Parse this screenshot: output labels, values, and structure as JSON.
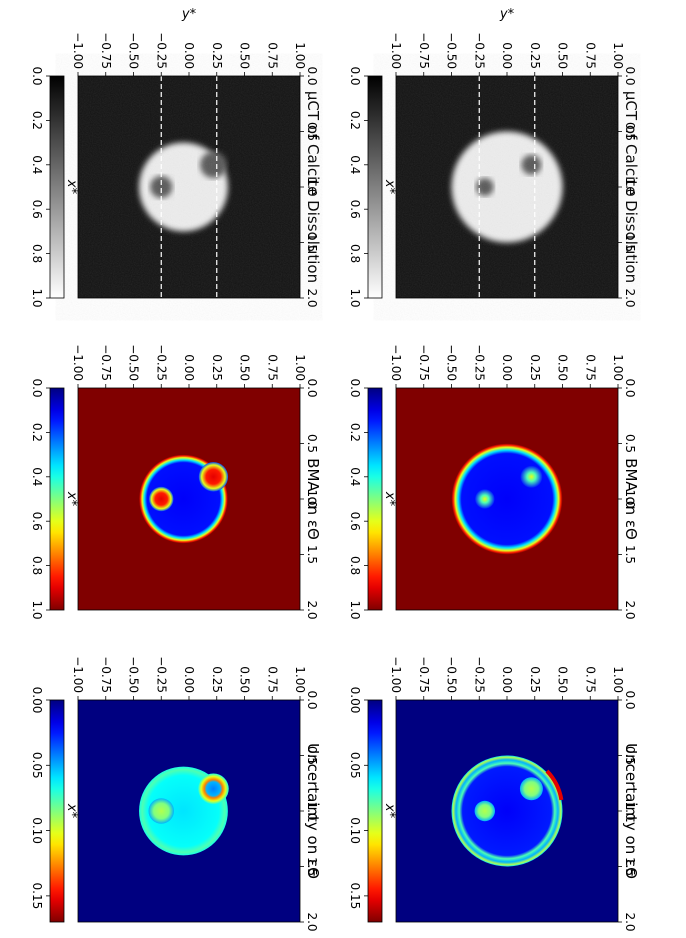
{
  "figure": {
    "rows": [
      {
        "panels": [
          {
            "title": "μCT of Calcite Dissolution",
            "kind": "ct",
            "colormap": "gray",
            "vlim": [
              0.0,
              1.0
            ],
            "colorbar_ticks": [
              "0.0",
              "0.2",
              "0.4",
              "0.6",
              "0.8",
              "1.0"
            ],
            "colorbar_label": "x*",
            "dashed_lines_y": [
              -0.25,
              0.25
            ],
            "shape": {
              "circle_center": [
                1.0,
                0.0
              ],
              "circle_radius": 0.5,
              "pores": [
                {
                  "x": 0.8,
                  "y": 0.22,
                  "r": 0.09
                },
                {
                  "x": 1.0,
                  "y": -0.2,
                  "r": 0.08
                }
              ]
            }
          },
          {
            "title": "BMA on εΘ",
            "kind": "bma",
            "colormap": "jet",
            "vlim": [
              0.0,
              1.0
            ],
            "colorbar_ticks": [
              "0.0",
              "0.2",
              "0.4",
              "0.6",
              "0.8",
              "1.0"
            ],
            "colorbar_label": "x*",
            "shape": {
              "circle_center": [
                1.0,
                0.0
              ],
              "circle_radius": 0.5,
              "pores": [
                {
                  "x": 0.8,
                  "y": 0.22,
                  "r": 0.09
                },
                {
                  "x": 1.0,
                  "y": -0.2,
                  "r": 0.08
                }
              ]
            }
          },
          {
            "title": "Uncertainty on εΘ",
            "kind": "unc",
            "colormap": "jet",
            "vlim": [
              0.0,
              0.17
            ],
            "colorbar_ticks": [
              "0.00",
              "0.05",
              "0.10",
              "0.15"
            ],
            "colorbar_label": "x*",
            "shape": {
              "circle_center": [
                1.0,
                0.0
              ],
              "circle_radius": 0.5,
              "pores": [
                {
                  "x": 0.8,
                  "y": 0.22,
                  "r": 0.09
                },
                {
                  "x": 1.0,
                  "y": -0.2,
                  "r": 0.08
                }
              ]
            }
          }
        ]
      },
      {
        "panels": [
          {
            "title": "μCT of Calcite Dissolution",
            "kind": "ct",
            "colormap": "gray",
            "vlim": [
              0.0,
              1.0
            ],
            "colorbar_ticks": [
              "0.0",
              "0.2",
              "0.4",
              "0.6",
              "0.8",
              "1.0"
            ],
            "colorbar_label": "x*",
            "dashed_lines_y": [
              -0.25,
              0.25
            ],
            "shape": {
              "circle_center": [
                1.0,
                -0.05
              ],
              "circle_radius": 0.4,
              "pores": [
                {
                  "x": 0.8,
                  "y": 0.22,
                  "r": 0.12
                },
                {
                  "x": 1.0,
                  "y": -0.25,
                  "r": 0.1
                }
              ]
            }
          },
          {
            "title": "BMA on εΘ",
            "kind": "bma",
            "colormap": "jet",
            "vlim": [
              0.0,
              1.0
            ],
            "colorbar_ticks": [
              "0.0",
              "0.2",
              "0.4",
              "0.6",
              "0.8",
              "1.0"
            ],
            "colorbar_label": "x*",
            "shape": {
              "circle_center": [
                1.0,
                -0.05
              ],
              "circle_radius": 0.4,
              "pores": [
                {
                  "x": 0.8,
                  "y": 0.22,
                  "r": 0.12
                },
                {
                  "x": 1.0,
                  "y": -0.25,
                  "r": 0.1
                }
              ]
            }
          },
          {
            "title": "Uncertainty on εΘ",
            "kind": "unc",
            "colormap": "jet",
            "vlim": [
              0.0,
              0.17
            ],
            "colorbar_ticks": [
              "0.00",
              "0.05",
              "0.10",
              "0.15"
            ],
            "colorbar_label": "x*",
            "shape": {
              "circle_center": [
                1.0,
                -0.05
              ],
              "circle_radius": 0.4,
              "pores": [
                {
                  "x": 0.8,
                  "y": 0.22,
                  "r": 0.12
                },
                {
                  "x": 1.0,
                  "y": -0.25,
                  "r": 0.1
                }
              ]
            }
          }
        ]
      }
    ],
    "x_ticks": [
      "0.0",
      "0.5",
      "1.0",
      "1.5",
      "2.0"
    ],
    "y_ticks": [
      "−1.00",
      "−0.75",
      "−0.50",
      "−0.25",
      "0.00",
      "0.25",
      "0.50",
      "0.75",
      "1.00"
    ],
    "y_axis_label": "y*",
    "xlim": [
      0.0,
      2.0
    ],
    "ylim": [
      -1.0,
      1.0
    ]
  },
  "chart_data": {
    "type": "heatmap",
    "xlabel": "x*",
    "ylabel": "y*",
    "xlim": [
      0.0,
      2.0
    ],
    "ylim": [
      -1.0,
      1.0
    ],
    "x_ticks": [
      0.0,
      0.5,
      1.0,
      1.5,
      2.0
    ],
    "y_ticks": [
      -1.0,
      -0.75,
      -0.5,
      -0.25,
      0.0,
      0.25,
      0.5,
      0.75,
      1.0
    ],
    "panels": [
      {
        "row": 1,
        "title": "μCT of Calcite Dissolution",
        "colorbar_range": [
          0.0,
          1.0
        ]
      },
      {
        "row": 1,
        "title": "BMA on εΘ",
        "colorbar_range": [
          0.0,
          1.0
        ]
      },
      {
        "row": 1,
        "title": "Uncertainty on εΘ",
        "colorbar_range": [
          0.0,
          0.17
        ]
      },
      {
        "row": 2,
        "title": "μCT of Calcite Dissolution",
        "colorbar_range": [
          0.0,
          1.0
        ]
      },
      {
        "row": 2,
        "title": "BMA on εΘ",
        "colorbar_range": [
          0.0,
          1.0
        ]
      },
      {
        "row": 2,
        "title": "Uncertainty on εΘ",
        "colorbar_range": [
          0.0,
          0.17
        ]
      }
    ]
  }
}
